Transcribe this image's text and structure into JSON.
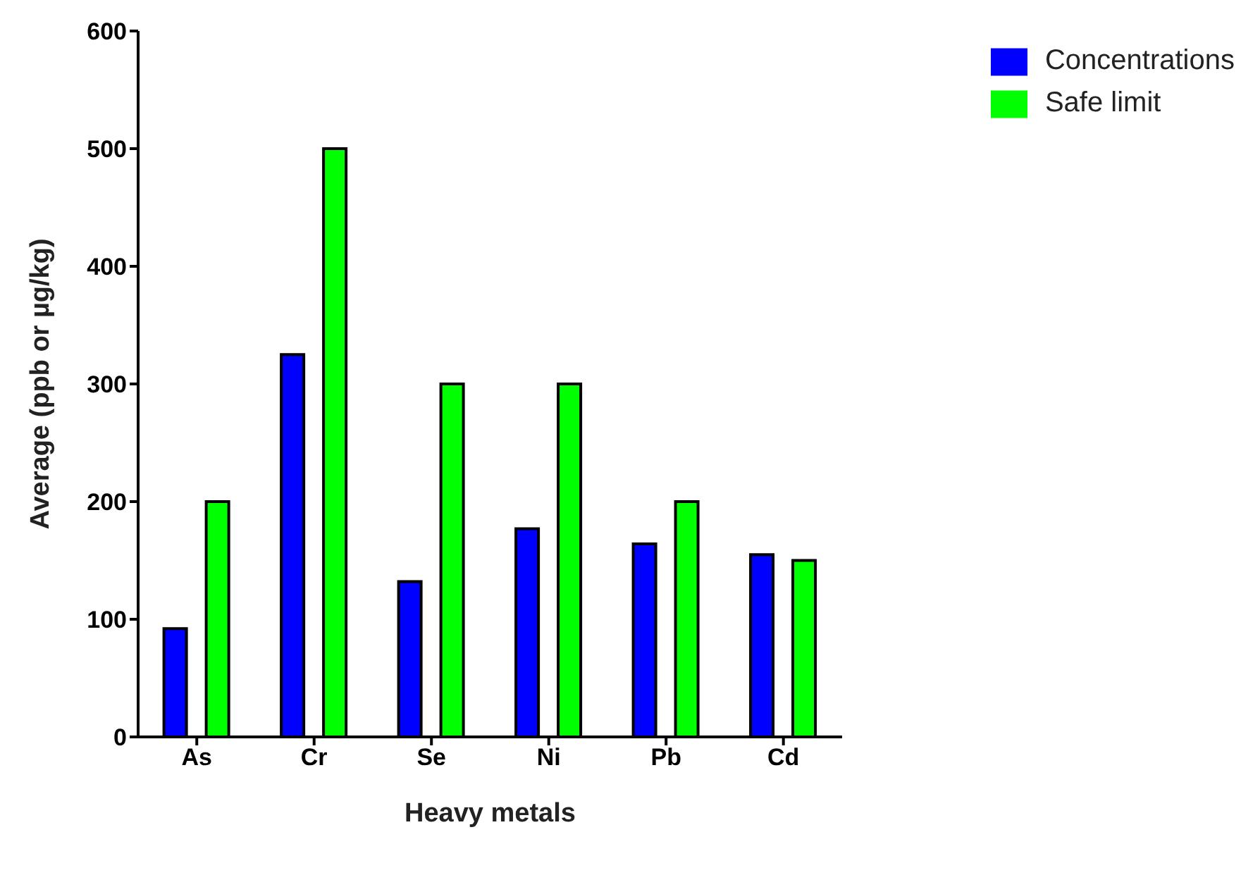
{
  "chart_data": {
    "type": "bar",
    "xlabel": "Heavy metals",
    "ylabel": "Average (ppb or µg/kg)",
    "categories": [
      "As",
      "Cr",
      "Se",
      "Ni",
      "Pb",
      "Cd"
    ],
    "series": [
      {
        "name": "Concentrations",
        "color": "#0000ff",
        "values": [
          92,
          325,
          132,
          177,
          164,
          155
        ]
      },
      {
        "name": "Safe limit",
        "color": "#00ff00",
        "values": [
          200,
          500,
          300,
          300,
          200,
          150
        ]
      }
    ],
    "ylim": [
      0,
      600
    ],
    "yticks": [
      0,
      100,
      200,
      300,
      400,
      500,
      600
    ],
    "grid": false,
    "legend": "top right"
  }
}
